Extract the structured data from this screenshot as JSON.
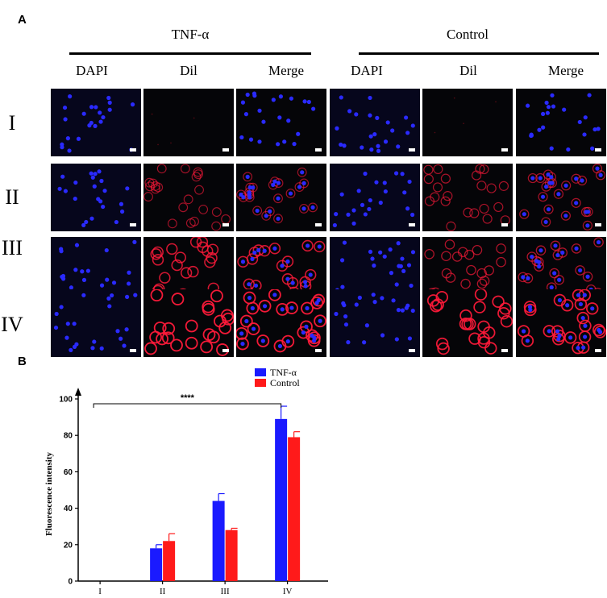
{
  "panel_a": {
    "letter": "A",
    "groups": [
      {
        "title": "TNF-α",
        "columns": [
          "DAPI",
          "Dil",
          "Merge"
        ]
      },
      {
        "title": "Control",
        "columns": [
          "DAPI",
          "Dil",
          "Merge"
        ]
      }
    ],
    "rows": [
      "I",
      "II",
      "III",
      "IV"
    ],
    "dil_intensity": {
      "TNF-α": [
        0.0,
        0.45,
        0.8,
        1.0
      ],
      "Control": [
        0.0,
        0.5,
        0.55,
        0.95
      ]
    },
    "colors": {
      "dapi": "#2a2aff",
      "dil": "#ff1a3a",
      "background": "#050510"
    }
  },
  "panel_b": {
    "letter": "B",
    "chart_data": {
      "type": "bar",
      "categories": [
        "I",
        "II",
        "III",
        "IV"
      ],
      "series": [
        {
          "name": "TNF-α",
          "color": "#1a1aff",
          "values": [
            0,
            18,
            44,
            89
          ],
          "errors": [
            0,
            2,
            4,
            7
          ]
        },
        {
          "name": "Control",
          "color": "#ff1a1a",
          "values": [
            0,
            22,
            28,
            79
          ],
          "errors": [
            0,
            4,
            1,
            3
          ]
        }
      ],
      "ylabel": "Fluorescence intensity",
      "xlabel": "",
      "ylim": [
        0,
        100
      ],
      "yticks": [
        0,
        20,
        40,
        60,
        80,
        100
      ],
      "significance": {
        "label": "****",
        "from": "I",
        "to": "IV"
      },
      "legend_position": "top-right",
      "grid": false
    }
  }
}
